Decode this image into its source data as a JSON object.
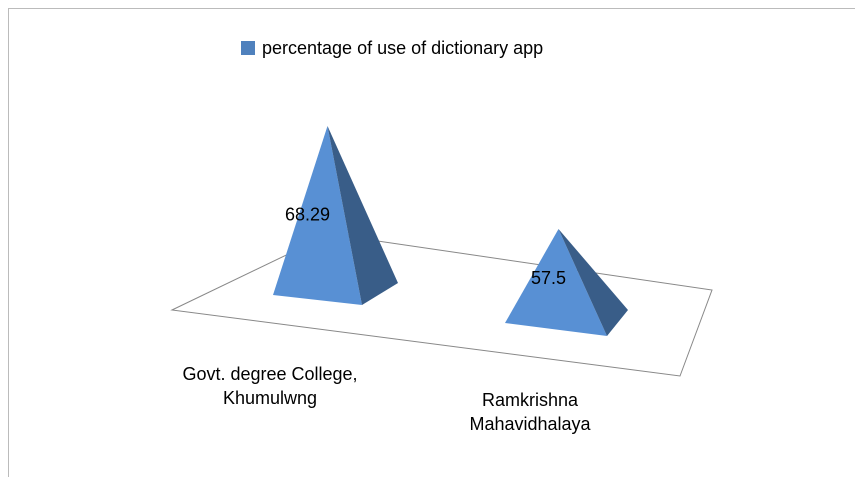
{
  "chart_data": {
    "type": "pyramid3d",
    "legend": "percentage of use of dictionary app",
    "categories": [
      "Govt. degree College, Khumulwng",
      "Ramkrishna Mahavidhalaya"
    ],
    "values": [
      68.29,
      57.5
    ],
    "color": "#4f81bd",
    "ylim": [
      45,
      70
    ]
  }
}
